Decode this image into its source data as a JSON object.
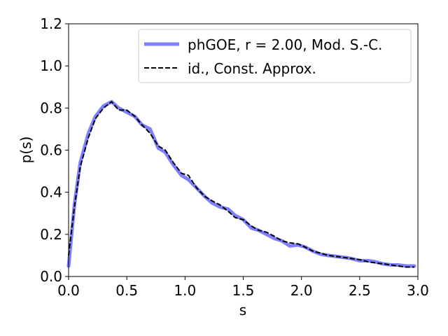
{
  "chart_data": {
    "type": "line",
    "title": "",
    "xlabel": "s",
    "ylabel": "p(s)",
    "xlim": [
      0.0,
      3.0
    ],
    "ylim": [
      0.0,
      1.2
    ],
    "xticks": [
      "0.0",
      "0.5",
      "1.0",
      "1.5",
      "2.0",
      "2.5",
      "3.0"
    ],
    "yticks": [
      "0.0",
      "0.2",
      "0.4",
      "0.6",
      "0.8",
      "1.0",
      "1.2"
    ],
    "grid": false,
    "legend_position": "top-right",
    "series": [
      {
        "name": "phGOE, r = 2.00, Mod. S.-C.",
        "color": "#7f7fff",
        "style": "solid",
        "x": [
          0.0,
          0.05,
          0.1,
          0.17,
          0.23,
          0.3,
          0.37,
          0.43,
          0.5,
          0.57,
          0.63,
          0.7,
          0.77,
          0.83,
          0.9,
          0.97,
          1.03,
          1.1,
          1.17,
          1.23,
          1.3,
          1.37,
          1.43,
          1.5,
          1.57,
          1.63,
          1.7,
          1.77,
          1.83,
          1.9,
          1.97,
          2.03,
          2.1,
          2.17,
          2.23,
          2.3,
          2.37,
          2.43,
          2.5,
          2.57,
          2.63,
          2.7,
          2.77,
          2.83,
          2.9,
          2.97
        ],
        "y": [
          0.05,
          0.34,
          0.54,
          0.68,
          0.76,
          0.81,
          0.83,
          0.8,
          0.78,
          0.76,
          0.72,
          0.7,
          0.61,
          0.59,
          0.53,
          0.48,
          0.46,
          0.42,
          0.38,
          0.35,
          0.33,
          0.32,
          0.29,
          0.27,
          0.23,
          0.22,
          0.2,
          0.18,
          0.17,
          0.145,
          0.15,
          0.14,
          0.12,
          0.105,
          0.1,
          0.095,
          0.09,
          0.085,
          0.075,
          0.075,
          0.07,
          0.06,
          0.055,
          0.055,
          0.05,
          0.05
        ]
      },
      {
        "name": "id., Const. Approx.",
        "color": "#000000",
        "style": "dashed",
        "x": [
          0.0,
          0.05,
          0.1,
          0.17,
          0.23,
          0.3,
          0.37,
          0.43,
          0.5,
          0.57,
          0.63,
          0.7,
          0.77,
          0.83,
          0.9,
          0.97,
          1.03,
          1.1,
          1.17,
          1.23,
          1.3,
          1.37,
          1.43,
          1.5,
          1.57,
          1.63,
          1.7,
          1.77,
          1.83,
          1.9,
          1.97,
          2.03,
          2.1,
          2.17,
          2.23,
          2.3,
          2.37,
          2.43,
          2.5,
          2.57,
          2.63,
          2.7,
          2.77,
          2.83,
          2.9,
          2.97
        ],
        "y": [
          0.1,
          0.33,
          0.52,
          0.66,
          0.75,
          0.8,
          0.83,
          0.79,
          0.79,
          0.76,
          0.72,
          0.68,
          0.62,
          0.6,
          0.54,
          0.49,
          0.48,
          0.42,
          0.38,
          0.36,
          0.34,
          0.31,
          0.28,
          0.27,
          0.24,
          0.22,
          0.21,
          0.19,
          0.17,
          0.16,
          0.155,
          0.14,
          0.12,
          0.11,
          0.1,
          0.095,
          0.09,
          0.085,
          0.08,
          0.07,
          0.065,
          0.06,
          0.055,
          0.05,
          0.045,
          0.045
        ]
      }
    ]
  }
}
